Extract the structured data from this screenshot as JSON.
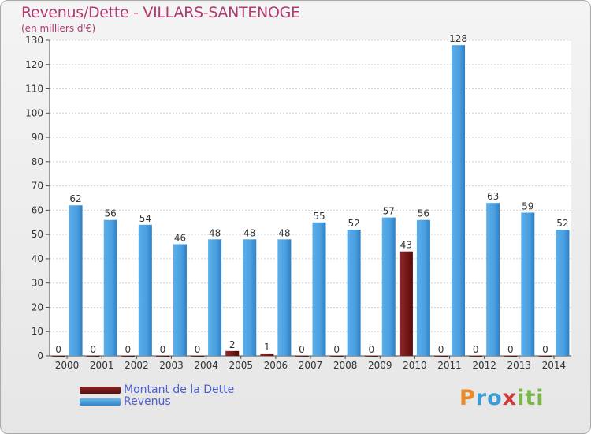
{
  "chart_data": {
    "type": "bar",
    "title": "Revenus/Dette - VILLARS-SANTENOGE",
    "subtitle": "(en milliers d'€)",
    "categories": [
      "2000",
      "2001",
      "2002",
      "2003",
      "2004",
      "2005",
      "2006",
      "2007",
      "2008",
      "2009",
      "2010",
      "2011",
      "2012",
      "2013",
      "2014"
    ],
    "series": [
      {
        "name": "Montant de la Dette",
        "color": "#7a1a1a",
        "values": [
          0,
          0,
          0,
          0,
          0,
          2,
          1,
          0,
          0,
          0,
          43,
          0,
          0,
          0,
          0
        ]
      },
      {
        "name": "Revenus",
        "color": "#4da3e6",
        "values": [
          62,
          56,
          54,
          46,
          48,
          48,
          48,
          55,
          52,
          57,
          56,
          128,
          63,
          59,
          52
        ]
      }
    ],
    "ylim": [
      0,
      130
    ],
    "yticks": [
      0,
      10,
      20,
      30,
      40,
      50,
      60,
      70,
      80,
      90,
      100,
      110,
      120,
      130
    ],
    "grid": true,
    "legend": "bottom-left"
  },
  "logo": {
    "p": "P",
    "r": "ro",
    "x": "x",
    "i": "iti"
  }
}
